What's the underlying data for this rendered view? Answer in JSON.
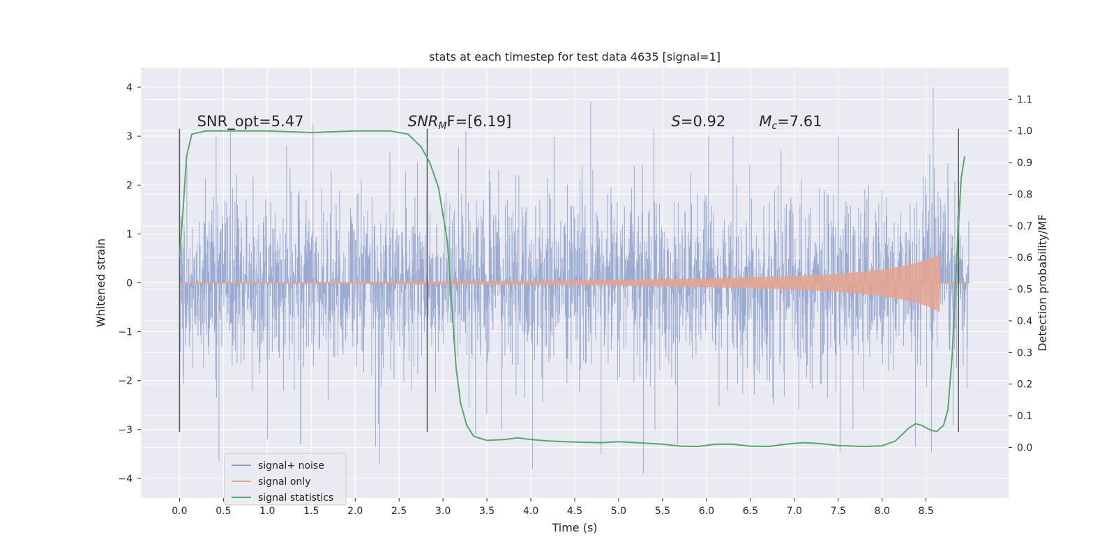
{
  "chart_data": {
    "type": "line",
    "title": "stats at each timestep for test data 4635 [signal=1]",
    "xlabel": "Time (s)",
    "ylabel": "Whitened strain",
    "y2label": "Detection probability/MF",
    "xlim": [
      -0.44,
      9.44
    ],
    "ylim": [
      -4.4,
      4.4
    ],
    "y2lim": [
      -0.16,
      1.2
    ],
    "xticks": [
      0.0,
      0.5,
      1.0,
      1.5,
      2.0,
      2.5,
      3.0,
      3.5,
      4.0,
      4.5,
      5.0,
      5.5,
      6.0,
      6.5,
      7.0,
      7.5,
      8.0,
      8.5
    ],
    "xtick_labels": [
      "0.0",
      "0.5",
      "1.0",
      "1.5",
      "2.0",
      "2.5",
      "3.0",
      "3.5",
      "4.0",
      "4.5",
      "5.0",
      "5.5",
      "6.0",
      "6.5",
      "7.0",
      "7.5",
      "8.0",
      "8.5"
    ],
    "yticks": [
      -4,
      -3,
      -2,
      -1,
      0,
      1,
      2,
      3,
      4
    ],
    "ytick_labels": [
      "−4",
      "−3",
      "−2",
      "−1",
      "0",
      "1",
      "2",
      "3",
      "4"
    ],
    "y2ticks": [
      0.0,
      0.1,
      0.2,
      0.3,
      0.4,
      0.5,
      0.6,
      0.7,
      0.8,
      0.9,
      1.0,
      1.1
    ],
    "y2tick_labels": [
      "0.0",
      "0.1",
      "0.2",
      "0.3",
      "0.4",
      "0.5",
      "0.6",
      "0.7",
      "0.8",
      "0.9",
      "1.0",
      "1.1"
    ],
    "grid": true,
    "legend_position": "lower-left",
    "series": [
      {
        "name": "signal+ noise",
        "color": "#8da0cb",
        "t_range": [
          0.0,
          8.99
        ],
        "envelope": {
          "p95": 1.9,
          "max_approx": 4.0,
          "min_approx": -3.9
        },
        "peaks": [
          [
            0.58,
            3.15
          ],
          [
            1.52,
            3.25
          ],
          [
            3.26,
            3.1
          ],
          [
            4.68,
            3.7
          ],
          [
            5.4,
            3.15
          ],
          [
            6.85,
            2.7
          ],
          [
            8.58,
            4.0
          ],
          [
            0.45,
            -3.65
          ],
          [
            1.0,
            -3.2
          ],
          [
            1.38,
            -3.3
          ],
          [
            2.23,
            -3.35
          ],
          [
            2.28,
            -3.7
          ],
          [
            3.37,
            -3.1
          ],
          [
            4.02,
            -3.8
          ],
          [
            4.8,
            -3.5
          ],
          [
            5.28,
            -3.9
          ],
          [
            5.67,
            -3.3
          ],
          [
            7.52,
            -3.45
          ],
          [
            8.38,
            -3.35
          ],
          [
            8.56,
            -3.45
          ]
        ]
      },
      {
        "name": "signal only",
        "color": "#e5a390",
        "amplitude_envelope": [
          [
            0.0,
            0.0
          ],
          [
            4.0,
            0.04
          ],
          [
            5.0,
            0.06
          ],
          [
            6.0,
            0.09
          ],
          [
            7.0,
            0.14
          ],
          [
            7.5,
            0.18
          ],
          [
            8.0,
            0.27
          ],
          [
            8.3,
            0.37
          ],
          [
            8.5,
            0.47
          ],
          [
            8.62,
            0.56
          ],
          [
            8.655,
            0.6
          ],
          [
            8.665,
            0.0
          ],
          [
            9.0,
            0.0
          ]
        ]
      },
      {
        "name": "signal statistics",
        "axis": "right",
        "color": "#55a868",
        "points": [
          [
            0.0,
            0.6
          ],
          [
            0.04,
            0.75
          ],
          [
            0.08,
            0.92
          ],
          [
            0.14,
            0.99
          ],
          [
            0.3,
            1.0
          ],
          [
            1.0,
            1.0
          ],
          [
            1.5,
            0.995
          ],
          [
            2.0,
            1.0
          ],
          [
            2.4,
            1.0
          ],
          [
            2.6,
            0.99
          ],
          [
            2.75,
            0.95
          ],
          [
            2.85,
            0.9
          ],
          [
            2.95,
            0.82
          ],
          [
            3.05,
            0.65
          ],
          [
            3.1,
            0.45
          ],
          [
            3.15,
            0.25
          ],
          [
            3.2,
            0.14
          ],
          [
            3.27,
            0.07
          ],
          [
            3.35,
            0.035
          ],
          [
            3.5,
            0.022
          ],
          [
            3.7,
            0.025
          ],
          [
            3.85,
            0.03
          ],
          [
            4.0,
            0.025
          ],
          [
            4.2,
            0.02
          ],
          [
            4.5,
            0.017
          ],
          [
            4.8,
            0.015
          ],
          [
            5.0,
            0.018
          ],
          [
            5.2,
            0.015
          ],
          [
            5.5,
            0.01
          ],
          [
            5.7,
            0.004
          ],
          [
            5.9,
            0.003
          ],
          [
            6.1,
            0.01
          ],
          [
            6.3,
            0.01
          ],
          [
            6.5,
            0.004
          ],
          [
            6.7,
            0.003
          ],
          [
            6.9,
            0.01
          ],
          [
            7.1,
            0.015
          ],
          [
            7.3,
            0.012
          ],
          [
            7.5,
            0.006
          ],
          [
            7.8,
            0.003
          ],
          [
            8.0,
            0.005
          ],
          [
            8.15,
            0.02
          ],
          [
            8.3,
            0.06
          ],
          [
            8.38,
            0.075
          ],
          [
            8.45,
            0.07
          ],
          [
            8.55,
            0.055
          ],
          [
            8.62,
            0.05
          ],
          [
            8.7,
            0.07
          ],
          [
            8.75,
            0.12
          ],
          [
            8.8,
            0.3
          ],
          [
            8.85,
            0.6
          ],
          [
            8.9,
            0.85
          ],
          [
            8.94,
            0.92
          ]
        ]
      }
    ],
    "markers": [
      {
        "x": 0.0,
        "y_range": [
          -3.05,
          3.15
        ]
      },
      {
        "x": 2.82,
        "y_range": [
          -3.05,
          3.15
        ]
      },
      {
        "x": 8.87,
        "y_range": [
          -3.05,
          3.15
        ]
      }
    ],
    "annotations": [
      {
        "id": "snr_opt",
        "text": "SNR_opt=5.47",
        "x": 0.2,
        "y": 3.2
      },
      {
        "id": "snr_mf",
        "text_main": "SNR",
        "text_sub": "M",
        "text_rest": "F=[6.19]",
        "x": 2.6,
        "y": 3.2
      },
      {
        "id": "s_value",
        "text_main": "S",
        "text_rest": "=0.92",
        "x": 5.6,
        "y": 3.2
      },
      {
        "id": "mc_value",
        "text_main": "M",
        "text_sub": "c",
        "text_rest": "=7.61",
        "x": 6.6,
        "y": 3.2
      }
    ]
  }
}
